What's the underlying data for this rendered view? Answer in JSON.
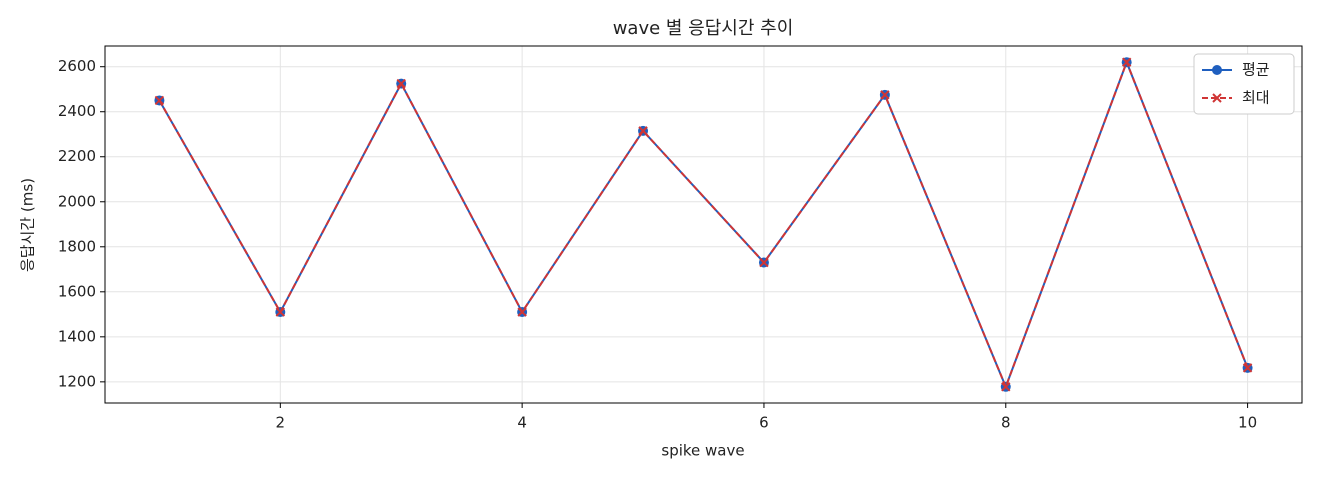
{
  "chart_data": {
    "type": "line",
    "title": "wave 별 응답시간 추이",
    "xlabel": "spike wave",
    "ylabel": "응답시간 (ms)",
    "x": [
      1,
      2,
      3,
      4,
      5,
      6,
      7,
      8,
      9,
      10
    ],
    "series": [
      {
        "name": "평균",
        "color": "#1f5fbf",
        "marker": "circle",
        "dashed": false,
        "values": [
          2450,
          1510,
          2525,
          1510,
          2315,
          1730,
          2475,
          1178,
          2620,
          1262
        ]
      },
      {
        "name": "최대",
        "color": "#d03535",
        "marker": "x",
        "dashed": true,
        "values": [
          2450,
          1510,
          2525,
          1510,
          2315,
          1730,
          2475,
          1178,
          2620,
          1262
        ]
      }
    ],
    "xlim": [
      0.55,
      10.45
    ],
    "xticks": [
      2,
      4,
      6,
      8,
      10
    ],
    "ylim": [
      1106,
      2692
    ],
    "yticks": [
      1200,
      1400,
      1600,
      1800,
      2000,
      2200,
      2400,
      2600
    ],
    "grid": true,
    "legend": "upper right"
  }
}
